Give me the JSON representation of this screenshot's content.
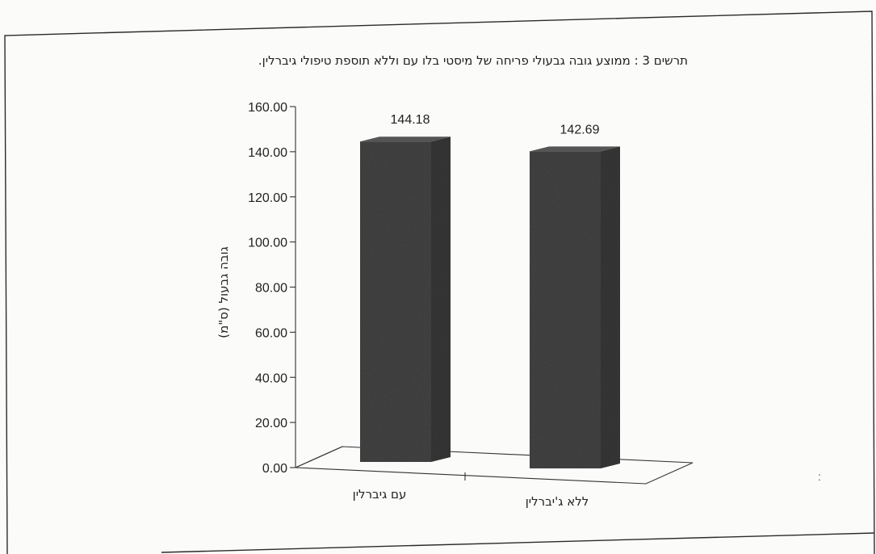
{
  "chart_data": {
    "type": "bar",
    "title": "תרשים 3 : ממוצע גובה גבעולי פריחה של מיסטי בלו עם וללא תוספת טיפולי גיברלין.",
    "ylabel": "גובה גבעול (ס\"מ)",
    "xlabel": "",
    "categories": [
      "עם גיברלין",
      "ללא ג'יברלין"
    ],
    "values": [
      144.18,
      142.69
    ],
    "value_labels": [
      "144.18",
      "142.69"
    ],
    "ylim": [
      0,
      160
    ],
    "yticks": [
      "0.00",
      "20.00",
      "40.00",
      "60.00",
      "80.00",
      "100.00",
      "120.00",
      "140.00",
      "160.00"
    ],
    "grid": false,
    "legend": "none",
    "style": "3d-column",
    "bar_color": "#474747"
  }
}
